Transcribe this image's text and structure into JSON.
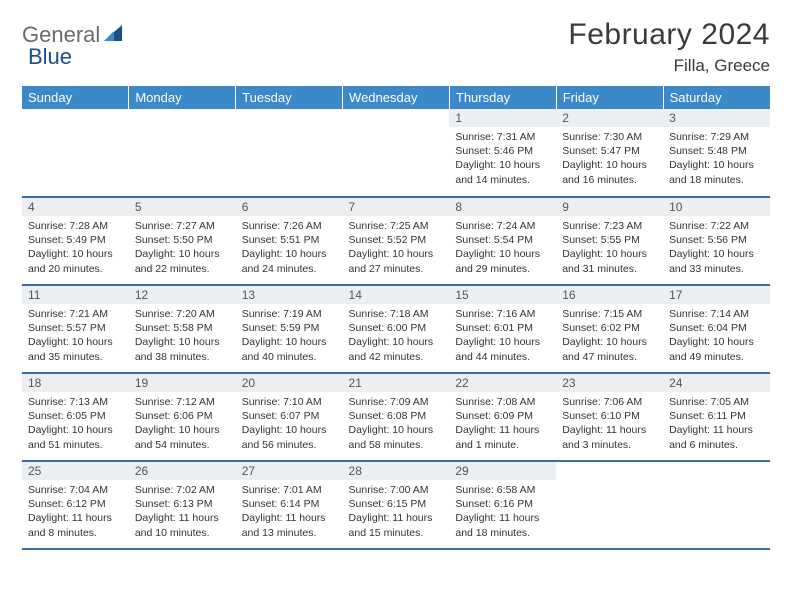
{
  "logo": {
    "text1": "General",
    "text2": "Blue"
  },
  "title": "February 2024",
  "location": "Filla, Greece",
  "colors": {
    "header_bg": "#3b89c9",
    "header_text": "#ffffff",
    "daynum_bg": "#eceff1",
    "row_border": "#3b6fa3",
    "body_text": "#333333",
    "logo_gray": "#6b6b6b",
    "logo_blue": "#1a4f8a"
  },
  "weekdays": [
    "Sunday",
    "Monday",
    "Tuesday",
    "Wednesday",
    "Thursday",
    "Friday",
    "Saturday"
  ],
  "leading_blanks": 4,
  "days": [
    {
      "n": 1,
      "sr": "7:31 AM",
      "ss": "5:46 PM",
      "dl": "10 hours and 14 minutes."
    },
    {
      "n": 2,
      "sr": "7:30 AM",
      "ss": "5:47 PM",
      "dl": "10 hours and 16 minutes."
    },
    {
      "n": 3,
      "sr": "7:29 AM",
      "ss": "5:48 PM",
      "dl": "10 hours and 18 minutes."
    },
    {
      "n": 4,
      "sr": "7:28 AM",
      "ss": "5:49 PM",
      "dl": "10 hours and 20 minutes."
    },
    {
      "n": 5,
      "sr": "7:27 AM",
      "ss": "5:50 PM",
      "dl": "10 hours and 22 minutes."
    },
    {
      "n": 6,
      "sr": "7:26 AM",
      "ss": "5:51 PM",
      "dl": "10 hours and 24 minutes."
    },
    {
      "n": 7,
      "sr": "7:25 AM",
      "ss": "5:52 PM",
      "dl": "10 hours and 27 minutes."
    },
    {
      "n": 8,
      "sr": "7:24 AM",
      "ss": "5:54 PM",
      "dl": "10 hours and 29 minutes."
    },
    {
      "n": 9,
      "sr": "7:23 AM",
      "ss": "5:55 PM",
      "dl": "10 hours and 31 minutes."
    },
    {
      "n": 10,
      "sr": "7:22 AM",
      "ss": "5:56 PM",
      "dl": "10 hours and 33 minutes."
    },
    {
      "n": 11,
      "sr": "7:21 AM",
      "ss": "5:57 PM",
      "dl": "10 hours and 35 minutes."
    },
    {
      "n": 12,
      "sr": "7:20 AM",
      "ss": "5:58 PM",
      "dl": "10 hours and 38 minutes."
    },
    {
      "n": 13,
      "sr": "7:19 AM",
      "ss": "5:59 PM",
      "dl": "10 hours and 40 minutes."
    },
    {
      "n": 14,
      "sr": "7:18 AM",
      "ss": "6:00 PM",
      "dl": "10 hours and 42 minutes."
    },
    {
      "n": 15,
      "sr": "7:16 AM",
      "ss": "6:01 PM",
      "dl": "10 hours and 44 minutes."
    },
    {
      "n": 16,
      "sr": "7:15 AM",
      "ss": "6:02 PM",
      "dl": "10 hours and 47 minutes."
    },
    {
      "n": 17,
      "sr": "7:14 AM",
      "ss": "6:04 PM",
      "dl": "10 hours and 49 minutes."
    },
    {
      "n": 18,
      "sr": "7:13 AM",
      "ss": "6:05 PM",
      "dl": "10 hours and 51 minutes."
    },
    {
      "n": 19,
      "sr": "7:12 AM",
      "ss": "6:06 PM",
      "dl": "10 hours and 54 minutes."
    },
    {
      "n": 20,
      "sr": "7:10 AM",
      "ss": "6:07 PM",
      "dl": "10 hours and 56 minutes."
    },
    {
      "n": 21,
      "sr": "7:09 AM",
      "ss": "6:08 PM",
      "dl": "10 hours and 58 minutes."
    },
    {
      "n": 22,
      "sr": "7:08 AM",
      "ss": "6:09 PM",
      "dl": "11 hours and 1 minute."
    },
    {
      "n": 23,
      "sr": "7:06 AM",
      "ss": "6:10 PM",
      "dl": "11 hours and 3 minutes."
    },
    {
      "n": 24,
      "sr": "7:05 AM",
      "ss": "6:11 PM",
      "dl": "11 hours and 6 minutes."
    },
    {
      "n": 25,
      "sr": "7:04 AM",
      "ss": "6:12 PM",
      "dl": "11 hours and 8 minutes."
    },
    {
      "n": 26,
      "sr": "7:02 AM",
      "ss": "6:13 PM",
      "dl": "11 hours and 10 minutes."
    },
    {
      "n": 27,
      "sr": "7:01 AM",
      "ss": "6:14 PM",
      "dl": "11 hours and 13 minutes."
    },
    {
      "n": 28,
      "sr": "7:00 AM",
      "ss": "6:15 PM",
      "dl": "11 hours and 15 minutes."
    },
    {
      "n": 29,
      "sr": "6:58 AM",
      "ss": "6:16 PM",
      "dl": "11 hours and 18 minutes."
    }
  ],
  "labels": {
    "sunrise": "Sunrise:",
    "sunset": "Sunset:",
    "daylight": "Daylight:"
  }
}
